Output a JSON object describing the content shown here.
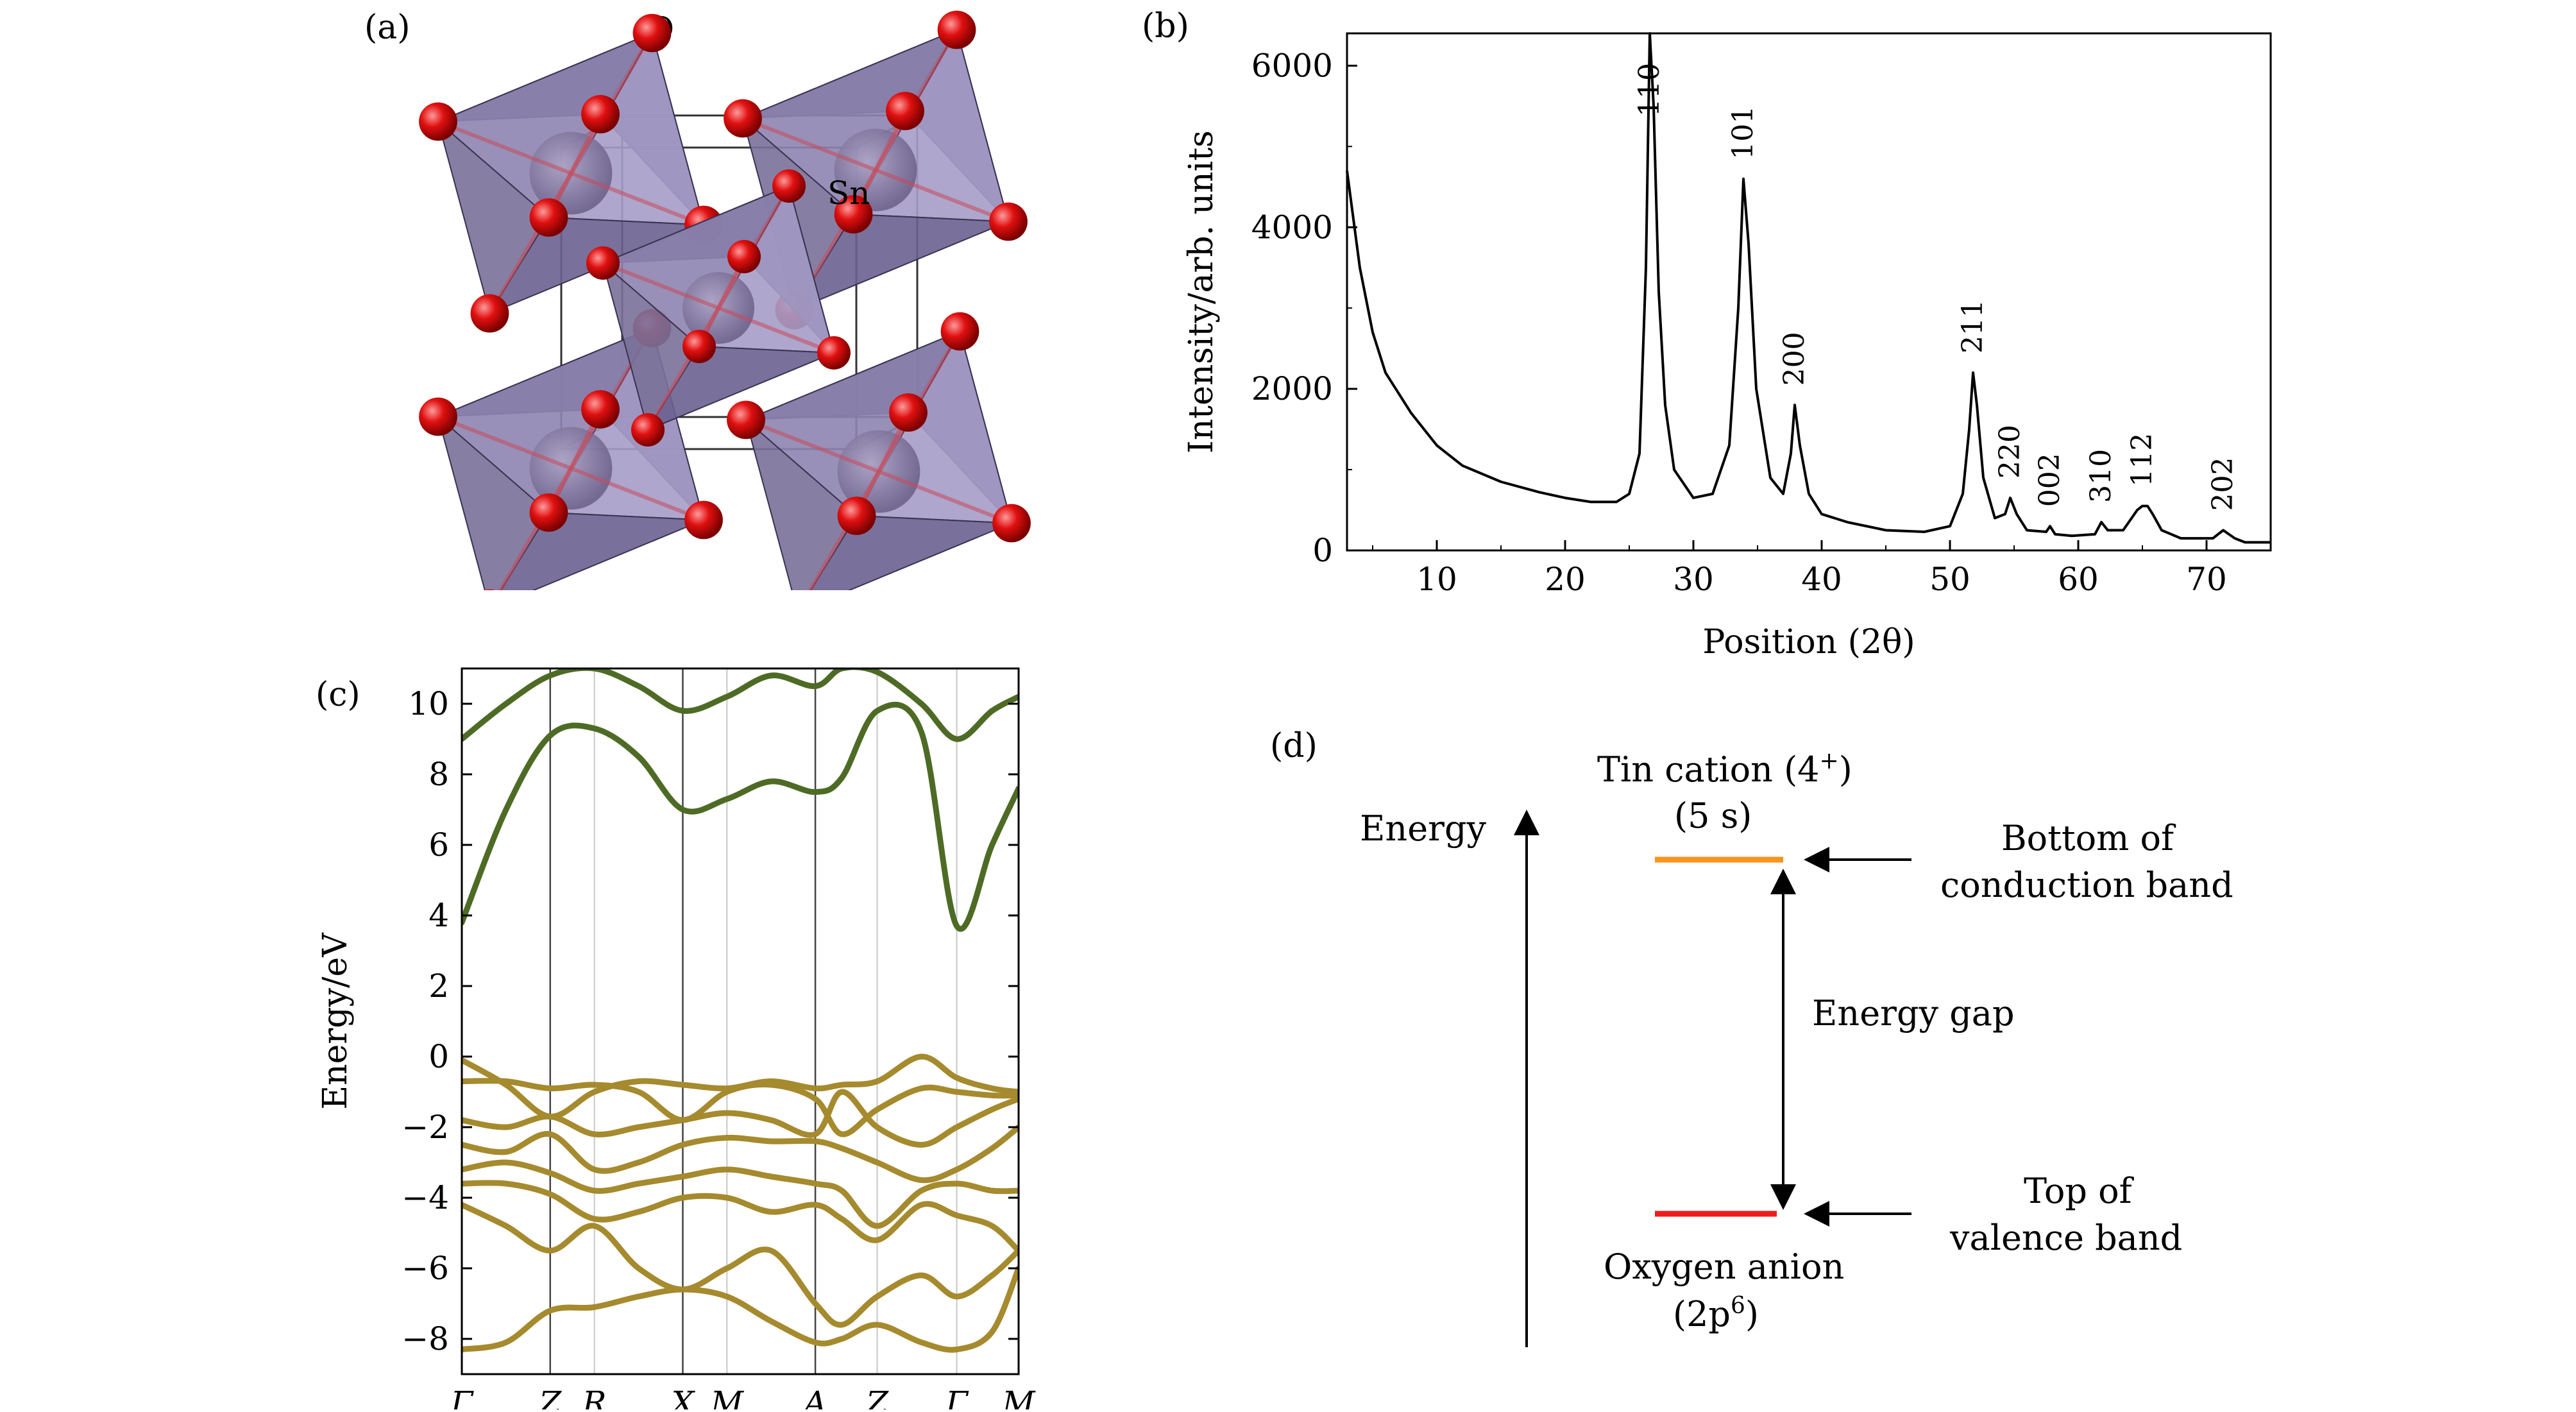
{
  "panels": {
    "a": {
      "label": "(a)",
      "atom_labels": [
        "O",
        "Sn"
      ]
    },
    "b": {
      "label": "(b)"
    },
    "c": {
      "label": "(c)"
    },
    "d": {
      "label": "(d)",
      "axis_label": "Energy",
      "cation_line1": "Tin cation (4",
      "cation_sup": "+",
      "cation_line1_end": ")",
      "cation_line2": "(5 s)",
      "cbm_line1": "Bottom of",
      "cbm_line2": "conduction band",
      "gap": "Energy gap",
      "vbm_line1": "Top of",
      "vbm_line2": "valence band",
      "anion_line1": "Oxygen anion",
      "anion_line2_pre": "(2p",
      "anion_sup": "6",
      "anion_line2_post": ")",
      "colors": {
        "cbm": "#f7941d",
        "vbm": "#ee1c1c"
      }
    }
  },
  "chart_data": [
    {
      "type": "line",
      "panel": "b",
      "xlabel": "Position (2θ)",
      "ylabel": "Intensity/arb. units",
      "xlim": [
        3,
        75
      ],
      "ylim": [
        0,
        6400
      ],
      "xticks": [
        10,
        20,
        30,
        40,
        50,
        60,
        70
      ],
      "yticks": [
        0,
        2000,
        4000,
        6000
      ],
      "series": [
        {
          "x": [
            3,
            4,
            5,
            6,
            8,
            10,
            12,
            15,
            18,
            20,
            22,
            24,
            25,
            25.8,
            26.3,
            26.6,
            26.9,
            27.3,
            27.8,
            28.5,
            30,
            31.5,
            32.8,
            33.5,
            33.9,
            34.3,
            34.9,
            36,
            37,
            37.6,
            37.9,
            38.3,
            39,
            40,
            42,
            45,
            48,
            50,
            51,
            51.5,
            51.8,
            52.1,
            52.6,
            53.5,
            54.3,
            54.7,
            55.2,
            56,
            57.5,
            57.8,
            58.2,
            59.5,
            61.3,
            61.8,
            62.3,
            63.5,
            64.6,
            65,
            65.4,
            65.8,
            66.5,
            68,
            70.5,
            71.3,
            72.2,
            73,
            75
          ],
          "y": [
            4700,
            3500,
            2700,
            2200,
            1700,
            1300,
            1050,
            850,
            720,
            650,
            600,
            600,
            700,
            1200,
            3500,
            6400,
            5500,
            3200,
            1800,
            1000,
            650,
            700,
            1300,
            3000,
            4600,
            3800,
            2000,
            900,
            700,
            1200,
            1800,
            1300,
            700,
            450,
            350,
            250,
            230,
            300,
            700,
            1500,
            2200,
            1800,
            900,
            400,
            450,
            650,
            450,
            250,
            230,
            300,
            200,
            180,
            200,
            350,
            250,
            250,
            500,
            550,
            550,
            450,
            250,
            150,
            150,
            250,
            150,
            100,
            100
          ]
        }
      ],
      "annotations": [
        {
          "text": "110",
          "x": 26.6
        },
        {
          "text": "101",
          "x": 33.9
        },
        {
          "text": "200",
          "x": 37.9
        },
        {
          "text": "211",
          "x": 51.8
        },
        {
          "text": "220",
          "x": 54.7
        },
        {
          "text": "002",
          "x": 57.8
        },
        {
          "text": "310",
          "x": 61.8
        },
        {
          "text": "112",
          "x": 65.0
        },
        {
          "text": "202",
          "x": 71.3
        }
      ]
    },
    {
      "type": "line",
      "panel": "c",
      "ylabel": "Energy/eV",
      "ylim": [
        -9,
        11
      ],
      "yticks": [
        -8,
        -6,
        -4,
        -2,
        0,
        2,
        4,
        6,
        8,
        10
      ],
      "kpoint_labels": [
        "Γ",
        "Z",
        "R",
        "X",
        "M",
        "A",
        "Z",
        "Γ",
        "M"
      ],
      "kpoint_x": [
        0,
        1,
        1.5,
        2.5,
        3,
        4,
        4.7,
        5.6,
        6.3
      ],
      "colors": {
        "conduction": "#4e6b25",
        "valence": "#a58a2e"
      },
      "conduction_bands": [
        {
          "x": [
            0,
            0.5,
            1,
            1.5,
            2,
            2.5,
            3,
            3.5,
            4,
            4.3,
            4.7,
            5.2,
            5.6,
            6,
            6.3
          ],
          "y": [
            3.8,
            7.0,
            9.1,
            9.3,
            8.5,
            7.0,
            7.3,
            7.8,
            7.5,
            7.9,
            9.8,
            9.2,
            3.7,
            6.0,
            7.6
          ]
        },
        {
          "x": [
            0,
            0.5,
            1,
            1.5,
            2,
            2.5,
            3,
            3.5,
            4,
            4.3,
            4.7,
            5.2,
            5.6,
            6,
            6.3
          ],
          "y": [
            9.0,
            10.0,
            10.8,
            11.0,
            10.5,
            9.8,
            10.2,
            10.8,
            10.5,
            11.0,
            10.9,
            10.0,
            9.0,
            9.8,
            10.2
          ]
        }
      ],
      "valence_bands": [
        {
          "x": [
            0,
            0.5,
            1,
            1.5,
            2,
            2.5,
            3,
            3.5,
            4,
            4.3,
            4.7,
            5.2,
            5.6,
            6,
            6.3
          ],
          "y": [
            -0.1,
            -0.8,
            -1.7,
            -1.0,
            -0.7,
            -0.8,
            -0.9,
            -0.7,
            -0.9,
            -0.8,
            -0.7,
            0.0,
            -0.6,
            -0.9,
            -1.0
          ]
        },
        {
          "x": [
            0,
            0.5,
            1,
            1.5,
            2,
            2.5,
            3,
            3.5,
            4,
            4.3,
            4.7,
            5.2,
            5.6,
            6,
            6.3
          ],
          "y": [
            -0.7,
            -0.7,
            -0.9,
            -0.8,
            -1.0,
            -1.8,
            -1.0,
            -0.8,
            -1.2,
            -2.2,
            -1.5,
            -0.9,
            -1.0,
            -1.1,
            -1.1
          ]
        },
        {
          "x": [
            0,
            0.5,
            1,
            1.5,
            2,
            2.5,
            3,
            3.5,
            4,
            4.3,
            4.7,
            5.2,
            5.6,
            6,
            6.3
          ],
          "y": [
            -1.8,
            -2.0,
            -1.7,
            -2.2,
            -2.0,
            -1.8,
            -1.6,
            -1.8,
            -2.2,
            -1.0,
            -2.0,
            -2.5,
            -2.0,
            -1.5,
            -1.2
          ]
        },
        {
          "x": [
            0,
            0.5,
            1,
            1.5,
            2,
            2.5,
            3,
            3.5,
            4,
            4.3,
            4.7,
            5.2,
            5.6,
            6,
            6.3
          ],
          "y": [
            -2.5,
            -2.7,
            -2.2,
            -3.2,
            -3.0,
            -2.5,
            -2.3,
            -2.4,
            -2.4,
            -2.6,
            -3.0,
            -3.5,
            -3.2,
            -2.6,
            -2.0
          ]
        },
        {
          "x": [
            0,
            0.5,
            1,
            1.5,
            2,
            2.5,
            3,
            3.5,
            4,
            4.3,
            4.7,
            5.2,
            5.6,
            6,
            6.3
          ],
          "y": [
            -3.2,
            -3.0,
            -3.3,
            -3.8,
            -3.6,
            -3.4,
            -3.2,
            -3.4,
            -3.6,
            -3.8,
            -4.8,
            -3.8,
            -3.6,
            -3.8,
            -3.8
          ]
        },
        {
          "x": [
            0,
            0.5,
            1,
            1.5,
            2,
            2.5,
            3,
            3.5,
            4,
            4.3,
            4.7,
            5.2,
            5.6,
            6,
            6.3
          ],
          "y": [
            -3.6,
            -3.6,
            -3.9,
            -4.6,
            -4.4,
            -4.0,
            -4.0,
            -4.4,
            -4.2,
            -4.6,
            -5.2,
            -4.2,
            -4.5,
            -4.8,
            -5.5
          ]
        },
        {
          "x": [
            0,
            0.5,
            1,
            1.5,
            2,
            2.5,
            3,
            3.5,
            4,
            4.3,
            4.7,
            5.2,
            5.6,
            6,
            6.3
          ],
          "y": [
            -4.2,
            -4.8,
            -5.5,
            -4.8,
            -6.0,
            -6.6,
            -6.0,
            -5.5,
            -7.0,
            -7.6,
            -6.8,
            -6.2,
            -6.8,
            -6.2,
            -5.5
          ]
        },
        {
          "x": [
            0,
            0.5,
            1,
            1.5,
            2,
            2.5,
            3,
            3.5,
            4,
            4.3,
            4.7,
            5.2,
            5.6,
            6,
            6.3
          ],
          "y": [
            -8.3,
            -8.1,
            -7.2,
            -7.1,
            -6.8,
            -6.6,
            -6.8,
            -7.5,
            -8.1,
            -8.0,
            -7.6,
            -8.1,
            -8.3,
            -7.8,
            -6.0
          ]
        }
      ]
    }
  ]
}
